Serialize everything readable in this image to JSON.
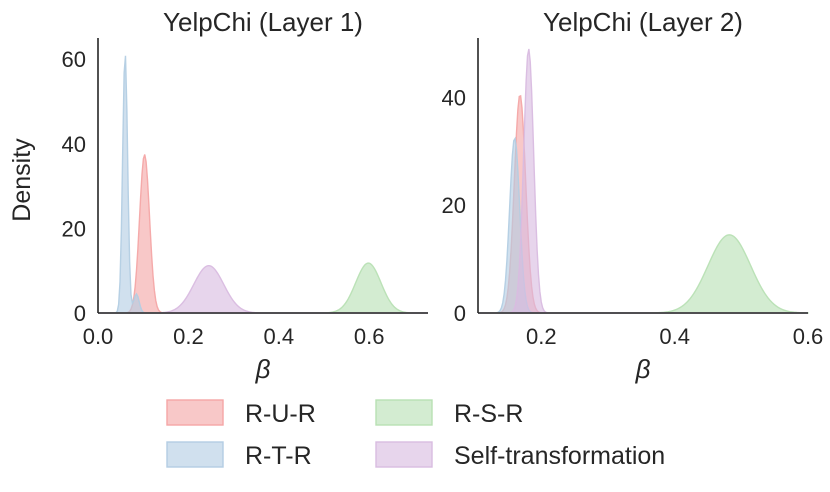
{
  "chart_data": [
    {
      "type": "area",
      "title": "YelpChi (Layer 1)",
      "xlabel": "β",
      "ylabel": "Density",
      "xlim": [
        0.0,
        0.73
      ],
      "ylim": [
        0,
        65
      ],
      "xticks": [
        0.0,
        0.2,
        0.4,
        0.6
      ],
      "xtick_labels": [
        "0.0",
        "0.2",
        "0.4",
        "0.6"
      ],
      "yticks": [
        0,
        20,
        40,
        60
      ],
      "ytick_labels": [
        "0",
        "20",
        "40",
        "60"
      ],
      "grid": false,
      "series": [
        {
          "name": "R-U-R",
          "color": "#f4a6a6",
          "peaks": [
            {
              "x": 0.103,
              "y": 37.5,
              "width": 0.011
            }
          ]
        },
        {
          "name": "R-T-R",
          "color": "#b3cde3",
          "peaks": [
            {
              "x": 0.06,
              "y": 61.5,
              "width": 0.0055
            },
            {
              "x": 0.085,
              "y": 4.5,
              "width": 0.006
            }
          ]
        },
        {
          "name": "R-S-R",
          "color": "#b8e0b4",
          "peaks": [
            {
              "x": 0.598,
              "y": 11.8,
              "width": 0.028
            }
          ]
        },
        {
          "name": "Self-transformation",
          "color": "#d9bce0",
          "peaks": [
            {
              "x": 0.245,
              "y": 11.2,
              "width": 0.033
            }
          ]
        }
      ]
    },
    {
      "type": "area",
      "title": "YelpChi (Layer 2)",
      "xlabel": "β",
      "ylabel": "",
      "xlim": [
        0.105,
        0.6
      ],
      "ylim": [
        0,
        51
      ],
      "xticks": [
        0.2,
        0.4,
        0.6
      ],
      "xtick_labels": [
        "0.2",
        "0.4",
        "0.6"
      ],
      "yticks": [
        0,
        20,
        40
      ],
      "ytick_labels": [
        "0",
        "20",
        "40"
      ],
      "grid": false,
      "series": [
        {
          "name": "R-U-R",
          "color": "#f4a6a6",
          "peaks": [
            {
              "x": 0.168,
              "y": 40.5,
              "width": 0.0085
            }
          ]
        },
        {
          "name": "R-T-R",
          "color": "#b3cde3",
          "peaks": [
            {
              "x": 0.16,
              "y": 32.5,
              "width": 0.0075
            }
          ]
        },
        {
          "name": "R-S-R",
          "color": "#b8e0b4",
          "peaks": [
            {
              "x": 0.482,
              "y": 14.5,
              "width": 0.032
            }
          ]
        },
        {
          "name": "Self-transformation",
          "color": "#d9bce0",
          "peaks": [
            {
              "x": 0.181,
              "y": 49.0,
              "width": 0.0075
            }
          ]
        }
      ]
    }
  ],
  "legend": {
    "placement": "bottom",
    "items": [
      {
        "label": "R-U-R",
        "color": "#f4a6a6"
      },
      {
        "label": "R-S-R",
        "color": "#b8e0b4"
      },
      {
        "label": "R-T-R",
        "color": "#b3cde3"
      },
      {
        "label": "Self-transformation",
        "color": "#d9bce0"
      }
    ]
  }
}
